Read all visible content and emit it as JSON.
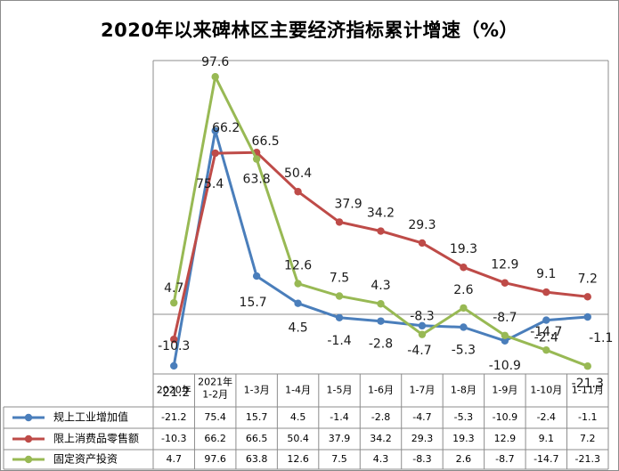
{
  "chart_data": {
    "type": "line",
    "title": "2020年以来碑林区主要经济指标累计增速（%）",
    "categories": [
      "2020年",
      "2021年\n1-2月",
      "1-3月",
      "1-4月",
      "1-5月",
      "1-6月",
      "1-7月",
      "1-8月",
      "1-9月",
      "1-10月",
      "1-11月"
    ],
    "series": [
      {
        "name": "规上工业增加值",
        "color": "#4a7ebb",
        "values": [
          -21.2,
          75.4,
          15.7,
          4.5,
          -1.4,
          -2.8,
          -4.7,
          -5.3,
          -10.9,
          -2.4,
          -1.1
        ]
      },
      {
        "name": "限上消费品零售额",
        "color": "#be4b48",
        "values": [
          -10.3,
          66.2,
          66.5,
          50.4,
          37.9,
          34.2,
          29.3,
          19.3,
          12.9,
          9.1,
          7.2
        ]
      },
      {
        "name": "固定资产投资",
        "color": "#98b954",
        "values": [
          4.7,
          97.6,
          63.8,
          12.6,
          7.5,
          4.3,
          -8.3,
          2.6,
          -8.7,
          -14.7,
          -21.3
        ]
      }
    ],
    "ylim": [
      -30,
      120
    ],
    "data_table": true,
    "legend": "data-table-left",
    "xlabel": "",
    "ylabel": ""
  }
}
